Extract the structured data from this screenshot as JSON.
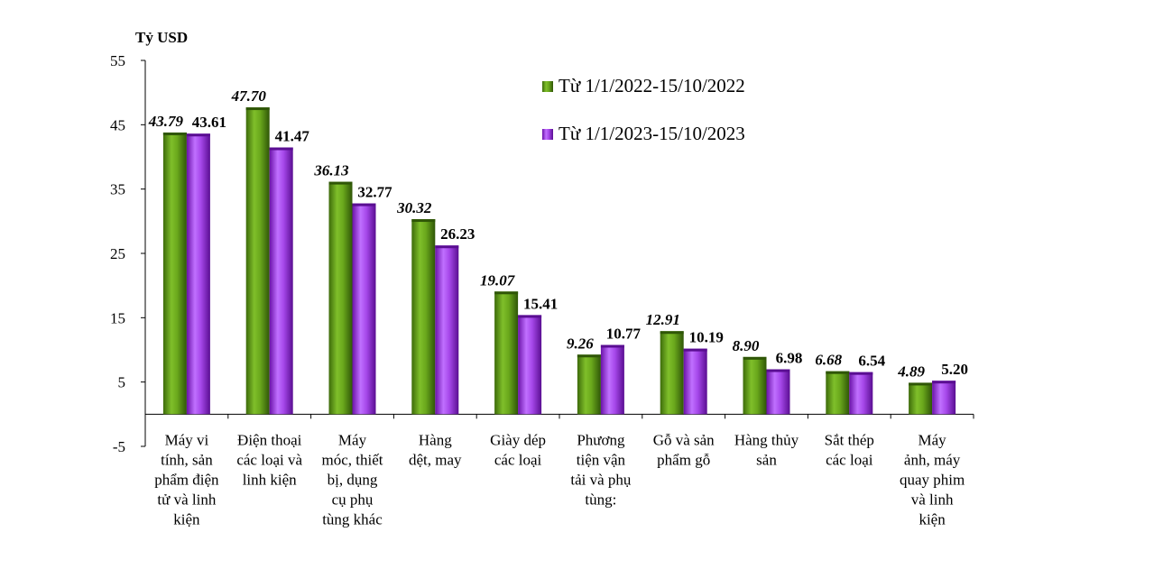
{
  "chart_data": {
    "type": "bar",
    "ylabel": "Tỷ USD",
    "ylim": [
      -5,
      55
    ],
    "yticks": [
      "-5",
      "5",
      "15",
      "25",
      "35",
      "45",
      "55"
    ],
    "grid": false,
    "legend_position": "top-right",
    "categories": [
      [
        "Máy vi",
        "tính, sản",
        "phẩm điện",
        "tử và linh",
        "kiện"
      ],
      [
        "Điện thoại",
        "các loại và",
        "linh kiện"
      ],
      [
        "Máy",
        "móc, thiết",
        "bị, dụng",
        "cụ phụ",
        "tùng khác"
      ],
      [
        "Hàng",
        "dệt, may"
      ],
      [
        "Giày dép",
        "các loại"
      ],
      [
        "Phương",
        "tiện vận",
        "tải và phụ",
        "tùng:"
      ],
      [
        "Gỗ và sản",
        "phẩm gỗ"
      ],
      [
        "Hàng thủy",
        "sản"
      ],
      [
        "Sắt thép",
        "các loại"
      ],
      [
        "Máy",
        "ảnh, máy",
        "quay phim",
        "và linh",
        "kiện"
      ]
    ],
    "series": [
      {
        "name": "Từ 1/1/2022-15/10/2022",
        "color": "#4f8a10",
        "values": [
          43.79,
          47.7,
          36.13,
          30.32,
          19.07,
          9.26,
          12.91,
          8.9,
          6.68,
          4.89
        ],
        "labels": [
          "43.79",
          "47.70",
          "36.13",
          "30.32",
          "19.07",
          "9.26",
          "12.91",
          "8.90",
          "6.68",
          "4.89"
        ]
      },
      {
        "name": "Từ 1/1/2023-15/10/2023",
        "color": "#9b30d9",
        "values": [
          43.61,
          41.47,
          32.77,
          26.23,
          15.41,
          10.77,
          10.19,
          6.98,
          6.54,
          5.2
        ],
        "labels": [
          "43.61",
          "41.47",
          "32.77",
          "26.23",
          "15.41",
          "10.77",
          "10.19",
          "6.98",
          "6.54",
          "5.20"
        ]
      }
    ]
  }
}
